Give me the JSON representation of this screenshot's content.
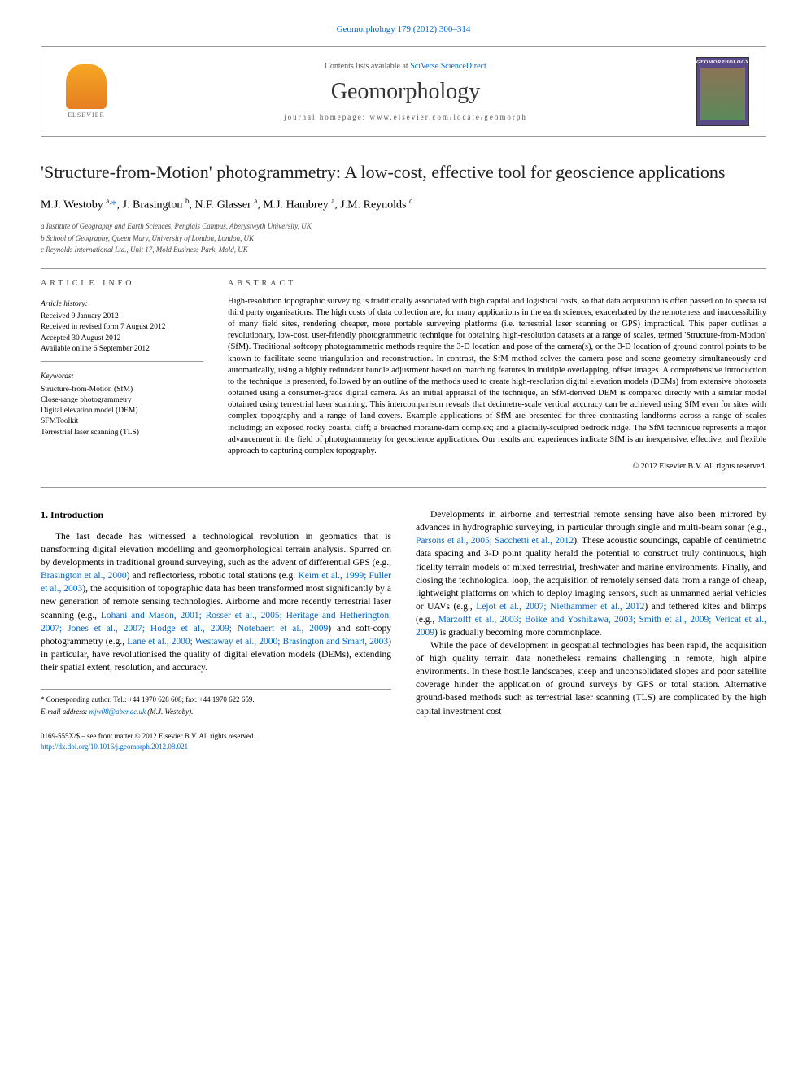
{
  "top_citation": "Geomorphology 179 (2012) 300–314",
  "header": {
    "contents_prefix": "Contents lists available at ",
    "contents_link": "SciVerse ScienceDirect",
    "journal_name": "Geomorphology",
    "homepage_label": "journal homepage: www.elsevier.com/locate/geomorph",
    "publisher_label": "ELSEVIER",
    "cover_label": "GEOMORPHOLOGY"
  },
  "title": "'Structure-from-Motion' photogrammetry: A low-cost, effective tool for geoscience applications",
  "authors_html": "M.J. Westoby <sup>a,</sup><span class='corr'>*</span>, J. Brasington <sup>b</sup>, N.F. Glasser <sup>a</sup>, M.J. Hambrey <sup>a</sup>, J.M. Reynolds <sup>c</sup>",
  "affiliations": [
    "a Institute of Geography and Earth Sciences, Penglais Campus, Aberystwyth University, UK",
    "b School of Geography, Queen Mary, University of London, London, UK",
    "c Reynolds International Ltd., Unit 17, Mold Business Park, Mold, UK"
  ],
  "article_info": {
    "heading": "ARTICLE INFO",
    "history_label": "Article history:",
    "history": [
      "Received 9 January 2012",
      "Received in revised form 7 August 2012",
      "Accepted 30 August 2012",
      "Available online 6 September 2012"
    ],
    "keywords_label": "Keywords:",
    "keywords": [
      "Structure-from-Motion (SfM)",
      "Close-range photogrammetry",
      "Digital elevation model (DEM)",
      "SFMToolkit",
      "Terrestrial laser scanning (TLS)"
    ]
  },
  "abstract": {
    "heading": "ABSTRACT",
    "text": "High-resolution topographic surveying is traditionally associated with high capital and logistical costs, so that data acquisition is often passed on to specialist third party organisations. The high costs of data collection are, for many applications in the earth sciences, exacerbated by the remoteness and inaccessibility of many field sites, rendering cheaper, more portable surveying platforms (i.e. terrestrial laser scanning or GPS) impractical. This paper outlines a revolutionary, low-cost, user-friendly photogrammetric technique for obtaining high-resolution datasets at a range of scales, termed 'Structure-from-Motion' (SfM). Traditional softcopy photogrammetric methods require the 3-D location and pose of the camera(s), or the 3-D location of ground control points to be known to facilitate scene triangulation and reconstruction. In contrast, the SfM method solves the camera pose and scene geometry simultaneously and automatically, using a highly redundant bundle adjustment based on matching features in multiple overlapping, offset images. A comprehensive introduction to the technique is presented, followed by an outline of the methods used to create high-resolution digital elevation models (DEMs) from extensive photosets obtained using a consumer-grade digital camera. As an initial appraisal of the technique, an SfM-derived DEM is compared directly with a similar model obtained using terrestrial laser scanning. This intercomparison reveals that decimetre-scale vertical accuracy can be achieved using SfM even for sites with complex topography and a range of land-covers. Example applications of SfM are presented for three contrasting landforms across a range of scales including; an exposed rocky coastal cliff; a breached moraine-dam complex; and a glacially-sculpted bedrock ridge. The SfM technique represents a major advancement in the field of photogrammetry for geoscience applications. Our results and experiences indicate SfM is an inexpensive, effective, and flexible approach to capturing complex topography.",
    "copyright": "© 2012 Elsevier B.V. All rights reserved."
  },
  "body": {
    "section_heading": "1. Introduction",
    "col1_p1_pre": "The last decade has witnessed a technological revolution in geomatics that is transforming digital elevation modelling and geomorphological terrain analysis. Spurred on by developments in traditional ground surveying, such as the advent of differential GPS (e.g., ",
    "col1_ref1": "Brasington et al., 2000",
    "col1_p1_mid1": ") and reflectorless, robotic total stations (e.g. ",
    "col1_ref2": "Keim et al., 1999; Fuller et al., 2003",
    "col1_p1_mid2": "), the acquisition of topographic data has been transformed most significantly by a new generation of remote sensing technologies. Airborne and more recently terrestrial laser scanning (e.g., ",
    "col1_ref3": "Lohani and Mason, 2001; Rosser et al., 2005; Heritage and Hetherington, 2007; Jones et al., 2007; Hodge et al., 2009; Notebaert et al., 2009",
    "col1_p1_mid3": ") and soft-copy photogrammetry (e.g., ",
    "col1_ref4": "Lane et al., 2000; Westaway et al., 2000; Brasington and Smart, 2003",
    "col1_p1_post": ") in particular, have revolutionised the quality of digital elevation models (DEMs), extending their spatial extent, resolution, and accuracy.",
    "col2_p1_pre": "Developments in airborne and terrestrial remote sensing have also been mirrored by advances in hydrographic surveying, in particular through single and multi-beam sonar (e.g., ",
    "col2_ref1": "Parsons et al., 2005; Sacchetti et al., 2012",
    "col2_p1_mid1": "). These acoustic soundings, capable of centimetric data spacing and 3-D point quality herald the potential to construct truly continuous, high fidelity terrain models of mixed terrestrial, freshwater and marine environments. Finally, and closing the technological loop, the acquisition of remotely sensed data from a range of cheap, lightweight platforms on which to deploy imaging sensors, such as unmanned aerial vehicles or UAVs (e.g., ",
    "col2_ref2": "Lejot et al., 2007; Niethammer et al., 2012",
    "col2_p1_mid2": ") and tethered kites and blimps (e.g., ",
    "col2_ref3": "Marzolff et al., 2003; Boike and Yoshikawa, 2003; Smith et al., 2009; Vericat et al., 2009",
    "col2_p1_post": ") is gradually becoming more commonplace.",
    "col2_p2": "While the pace of development in geospatial technologies has been rapid, the acquisition of high quality terrain data nonetheless remains challenging in remote, high alpine environments. In these hostile landscapes, steep and unconsolidated slopes and poor satellite coverage hinder the application of ground surveys by GPS or total station. Alternative ground-based methods such as terrestrial laser scanning (TLS) are complicated by the high capital investment cost"
  },
  "footer": {
    "corresponding": "* Corresponding author. Tel.: +44 1970 628 608; fax: +44 1970 622 659.",
    "email_label": "E-mail address: ",
    "email": "mjw08@aber.ac.uk",
    "email_suffix": " (M.J. Westoby).",
    "front_matter": "0169-555X/$ – see front matter © 2012 Elsevier B.V. All rights reserved.",
    "doi": "http://dx.doi.org/10.1016/j.geomorph.2012.08.021"
  },
  "colors": {
    "link": "#0066cc",
    "text": "#000000",
    "rule": "#999999",
    "cover_bg": "#5b4a8a"
  }
}
